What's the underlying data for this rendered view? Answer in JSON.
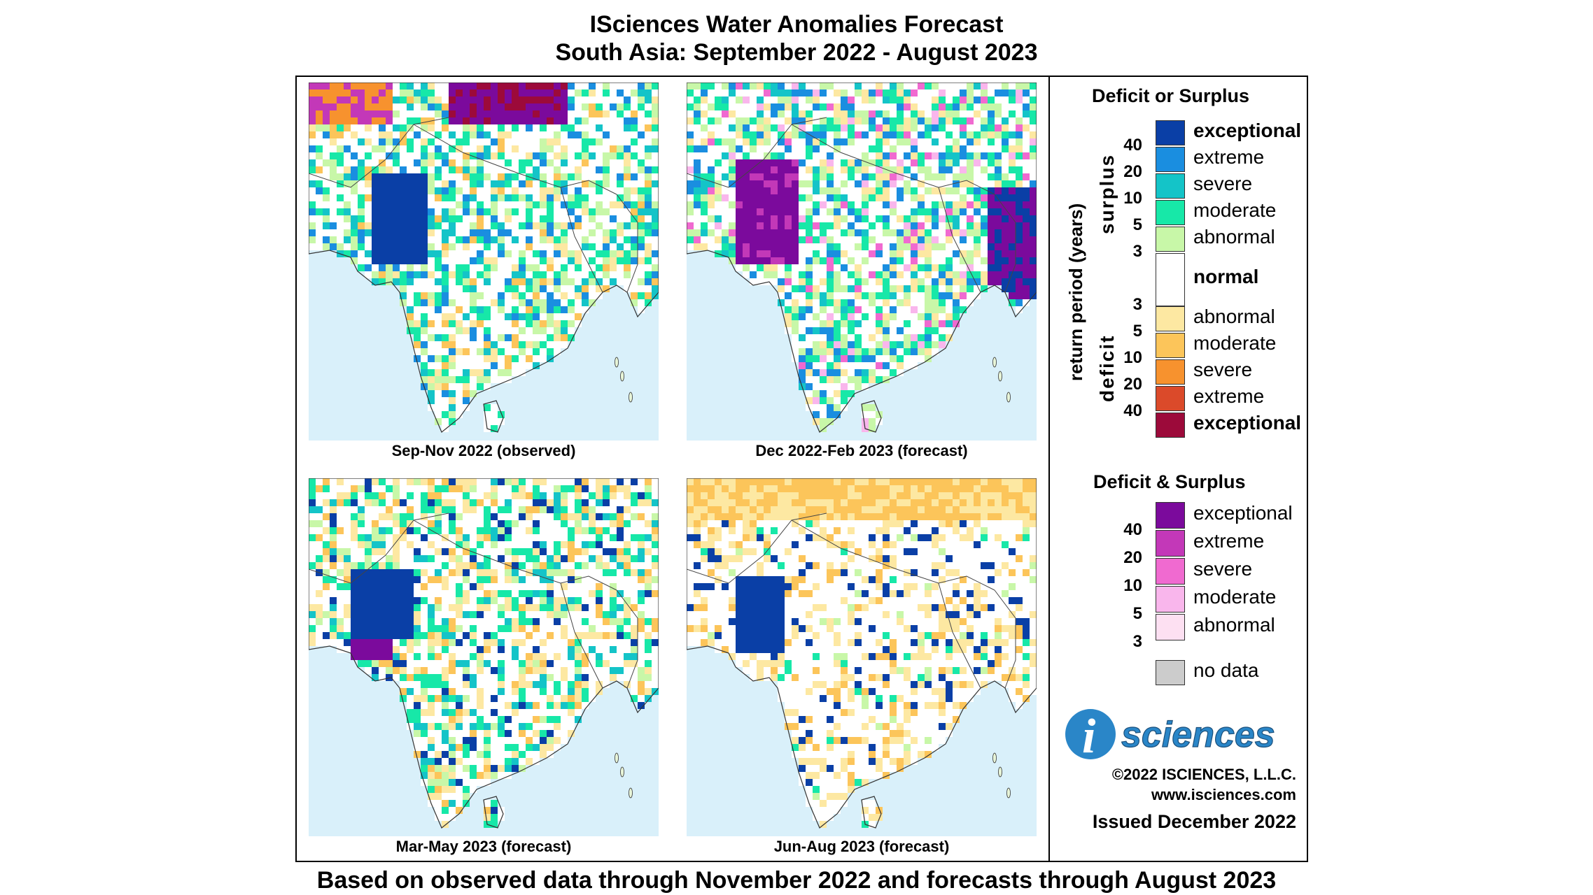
{
  "title_line1": "ISciences Water Anomalies Forecast",
  "title_line2": "South Asia: September 2022 - August 2023",
  "footer": "Based on observed data through November 2022 and forecasts through August 2023",
  "panels": [
    {
      "caption": "Sep-Nov 2022 (observed)",
      "dominant": "surplus"
    },
    {
      "caption": "Dec 2022-Feb 2023 (forecast)",
      "dominant": "mixed"
    },
    {
      "caption": "Mar-May 2023 (forecast)",
      "dominant": "surplus"
    },
    {
      "caption": "Jun-Aug 2023 (forecast)",
      "dominant": "deficit"
    }
  ],
  "legend": {
    "title1": "Deficit or Surplus",
    "surplus_axis": "surplus",
    "deficit_axis": "deficit",
    "return_axis": "return period (years)",
    "surplus_classes": [
      {
        "label": "exceptional",
        "color": "#0a3fa6",
        "bold": true
      },
      {
        "label": "extreme",
        "color": "#1a8ee0",
        "bold": false
      },
      {
        "label": "severe",
        "color": "#14c4c8",
        "bold": false
      },
      {
        "label": "moderate",
        "color": "#17e8a8",
        "bold": false
      },
      {
        "label": "abnormal",
        "color": "#c8f7a8",
        "bold": false
      }
    ],
    "normal_label": "normal",
    "deficit_classes": [
      {
        "label": "abnormal",
        "color": "#fde8a2",
        "bold": false
      },
      {
        "label": "moderate",
        "color": "#fcc55a",
        "bold": false
      },
      {
        "label": "severe",
        "color": "#f7922e",
        "bold": false
      },
      {
        "label": "extreme",
        "color": "#db4a2a",
        "bold": false
      },
      {
        "label": "exceptional",
        "color": "#9c0a3a",
        "bold": true
      }
    ],
    "years_top": [
      "40",
      "20",
      "10",
      "5",
      "3"
    ],
    "years_bottom": [
      "3",
      "5",
      "10",
      "20",
      "40"
    ],
    "title2": "Deficit & Surplus",
    "both_classes": [
      {
        "label": "exceptional",
        "color": "#7b0a9c"
      },
      {
        "label": "extreme",
        "color": "#c338b8"
      },
      {
        "label": "severe",
        "color": "#f06ad0"
      },
      {
        "label": "moderate",
        "color": "#f9b6ec"
      },
      {
        "label": "abnormal",
        "color": "#fde0f2"
      }
    ],
    "years_both": [
      "40",
      "20",
      "10",
      "5",
      "3"
    ],
    "nodata_label": "no data",
    "nodata_color": "#cccccc"
  },
  "logo_text": "sciences",
  "logo_i": "i",
  "copyright": "©2022 ISCIENCES, L.L.C.",
  "website": "www.isciences.com",
  "issued": "Issued December 2022"
}
